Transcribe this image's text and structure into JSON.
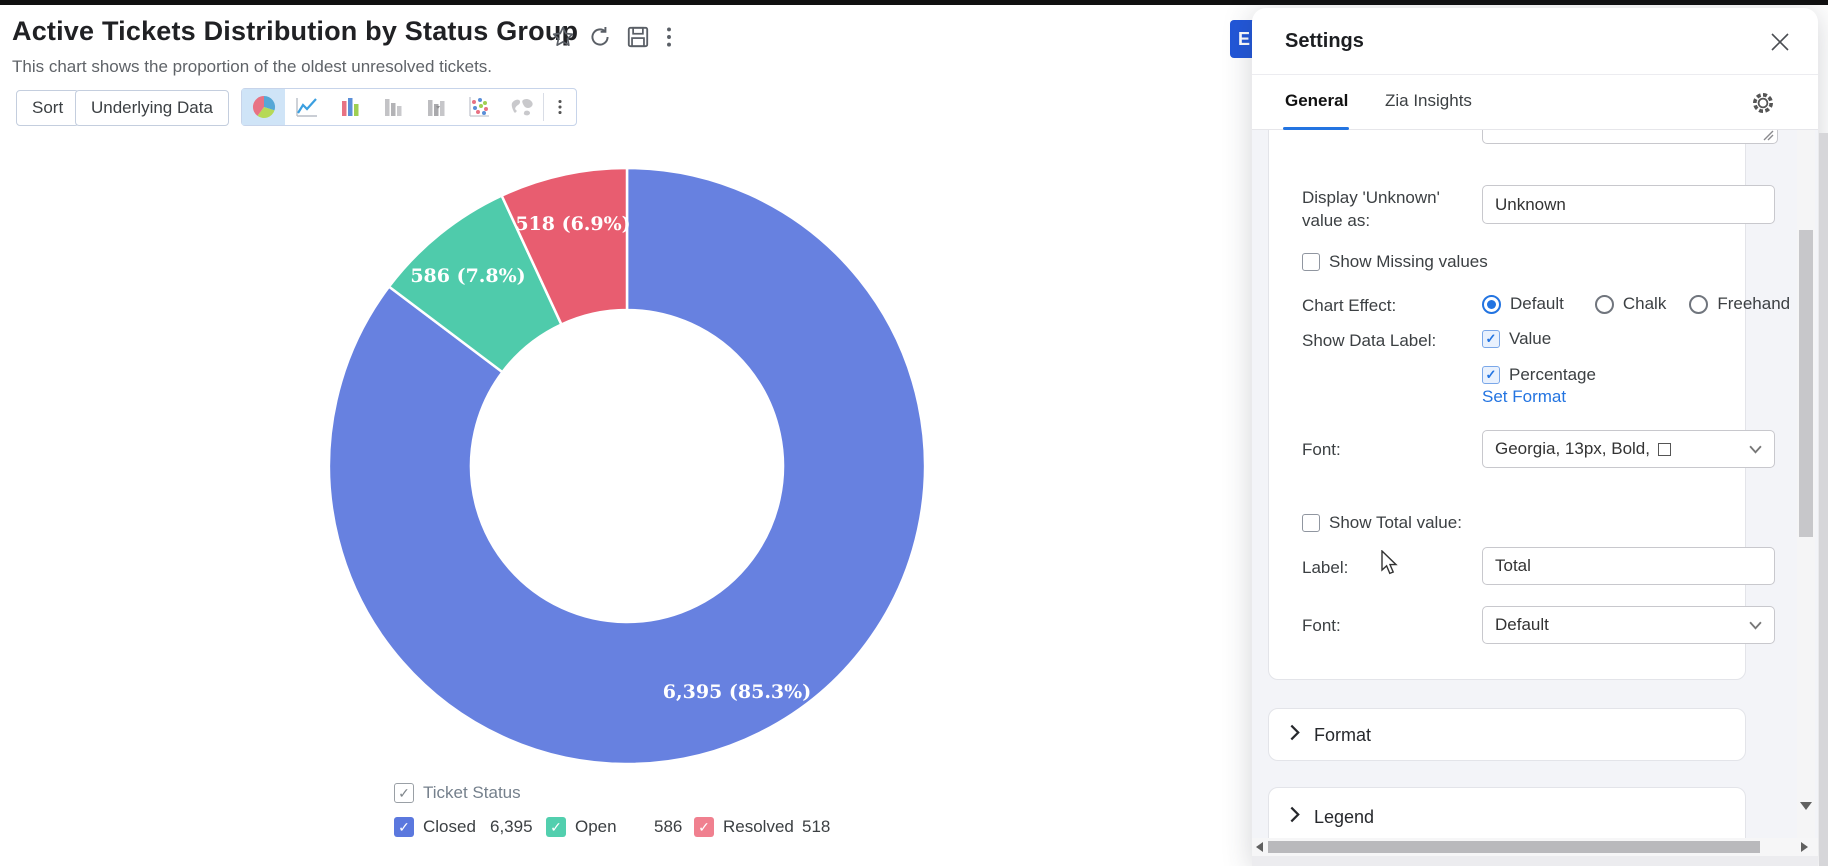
{
  "page": {
    "title": "Active Tickets Distribution by Status Group",
    "subtitle": "This chart shows the proportion of the oldest unresolved tickets."
  },
  "toolbar": {
    "sort_label": "Sort",
    "underlying_data_label": "Underlying Data",
    "chart_type_icons": [
      "pie-chart-icon",
      "line-chart-icon",
      "bar-chart-icon",
      "stacked-bar-icon",
      "waterfall-icon",
      "scatter-icon",
      "map-icon"
    ],
    "selected_chart_type": "pie-chart-icon"
  },
  "chart_data": {
    "type": "pie",
    "subtype": "donut",
    "title": "Active Tickets Distribution by Status Group",
    "categories": [
      "Closed",
      "Open",
      "Resolved"
    ],
    "values": [
      6395,
      586,
      518
    ],
    "percentages": [
      85.3,
      7.8,
      6.9
    ],
    "labels": [
      "6,395 (85.3%)",
      "586 (7.8%)",
      "518 (6.9%)"
    ],
    "colors": [
      "#6781e0",
      "#4fcbab",
      "#e85d70"
    ],
    "legend_colors": [
      "#5b78de",
      "#52cfae",
      "#f0808f"
    ],
    "legend_title": "Ticket Status",
    "legend_position": "bottom",
    "legend": [
      {
        "label": "Closed",
        "value": "6,395"
      },
      {
        "label": "Open",
        "value": "586"
      },
      {
        "label": "Resolved",
        "value": "518"
      }
    ]
  },
  "export_button": {
    "label": "E"
  },
  "settings": {
    "title": "Settings",
    "tabs": {
      "general": "General",
      "zia": "Zia Insights"
    },
    "active_tab": "General",
    "display_unknown": {
      "label": "Display 'Unknown' value as:",
      "value": "Unknown"
    },
    "show_missing": {
      "label": "Show Missing values",
      "checked": false
    },
    "chart_effect": {
      "label": "Chart Effect:",
      "options": {
        "default": "Default",
        "chalk": "Chalk",
        "freehand": "Freehand"
      },
      "selected": "Default"
    },
    "show_data_label": {
      "label": "Show Data Label:",
      "value_option": "Value",
      "percentage_option": "Percentage",
      "value_checked": true,
      "percentage_checked": true
    },
    "set_format_label": "Set Format",
    "font": {
      "label": "Font:",
      "value": "Georgia, 13px, Bold,"
    },
    "show_total": {
      "label": "Show Total value:",
      "checked": false
    },
    "total_label_field": {
      "label": "Label:",
      "value": "Total"
    },
    "total_font_field": {
      "label": "Font:",
      "value": "Default"
    },
    "sections": {
      "format": "Format",
      "legend": "Legend"
    }
  }
}
